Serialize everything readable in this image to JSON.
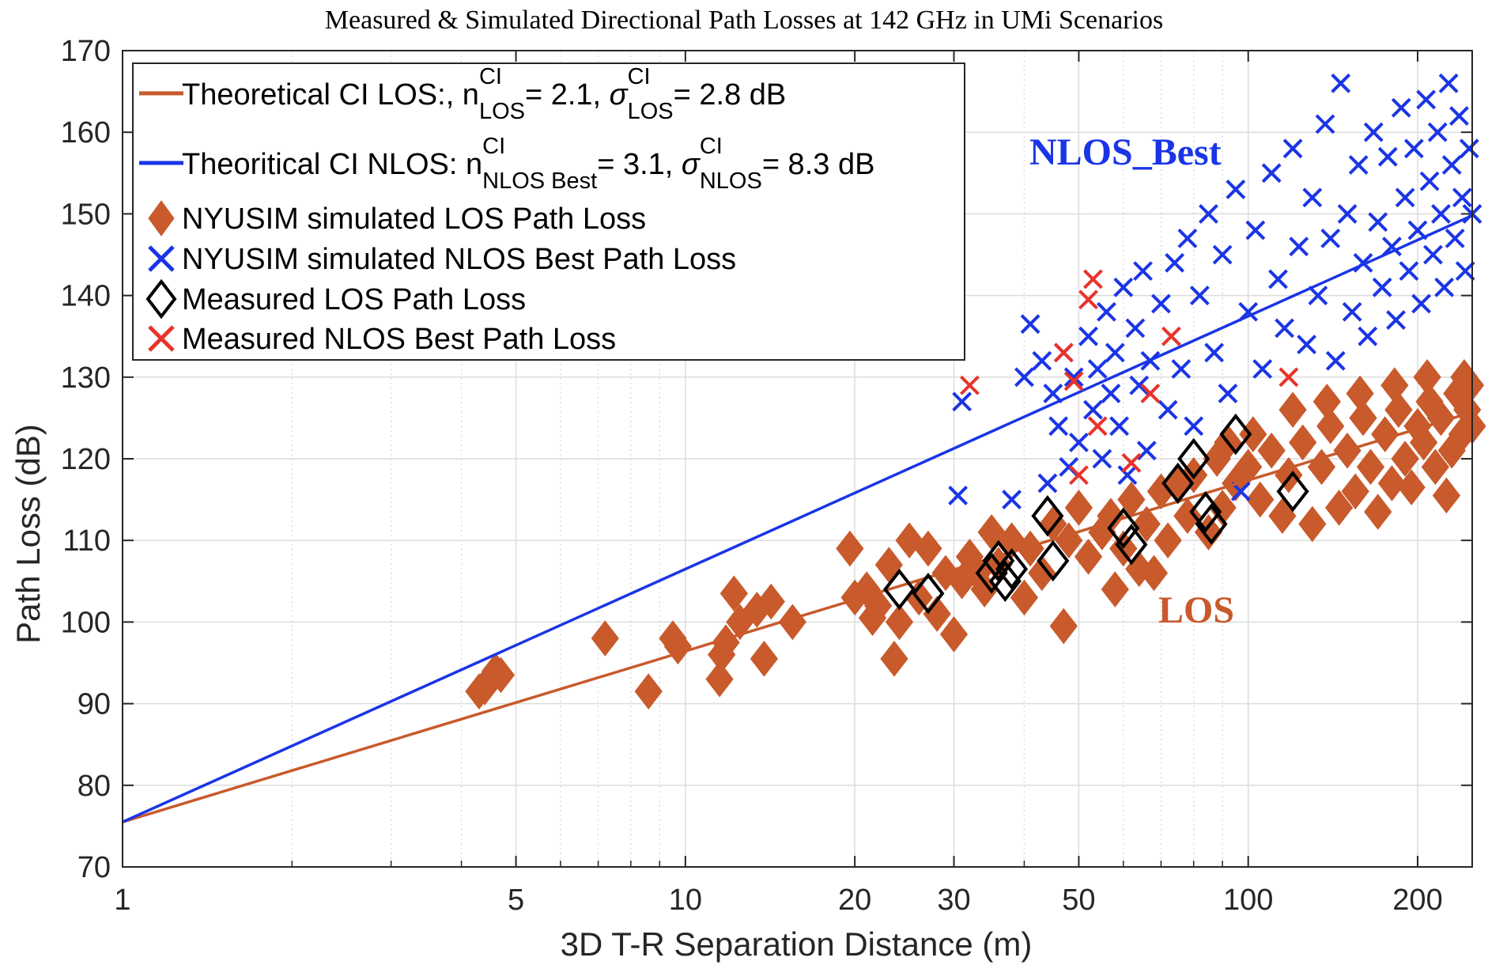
{
  "chart_data": {
    "type": "scatter",
    "title": "Measured & Simulated Directional Path Losses at 142 GHz in UMi Scenarios",
    "xlabel": "3D T-R Separation Distance (m)",
    "ylabel": "Path Loss (dB)",
    "xscale": "log",
    "xlim": [
      1,
      250
    ],
    "ylim": [
      70,
      170
    ],
    "grid": true,
    "legend_position": "top-left",
    "x_ticks": [
      1,
      5,
      10,
      20,
      30,
      50,
      100,
      200
    ],
    "x_tick_labels": [
      "1",
      "5",
      "10",
      "20",
      "30",
      "50",
      "100",
      "200"
    ],
    "x_minor_ticks": [
      2,
      3,
      4,
      6,
      7,
      8,
      9,
      40,
      60,
      70,
      80,
      90
    ],
    "y_ticks": [
      70,
      80,
      90,
      100,
      110,
      120,
      130,
      140,
      150,
      160,
      170
    ],
    "y_tick_labels": [
      "70",
      "80",
      "90",
      "100",
      "110",
      "120",
      "130",
      "140",
      "150",
      "160",
      "170"
    ],
    "annotations": [
      {
        "text": "NLOS_Best",
        "color": "#1a35e6",
        "x": 43,
        "y": 155
      },
      {
        "text": "LOS",
        "color": "#c85a2c",
        "x": 78,
        "y": 101
      }
    ],
    "legend": [
      {
        "key": "los_line",
        "prefix": "Theoretical CI LOS:, n",
        "sup1": "CI",
        "sub1": "LOS",
        "mid": "= 2.1, ",
        "sigma": "σ",
        "sup2": "CI",
        "sub2": "LOS",
        "suffix": "= 2.8 dB",
        "color": "#c85a2c"
      },
      {
        "key": "nlos_line",
        "prefix": "Theoritical CI NLOS: n",
        "sup1": "CI",
        "sub1": "NLOS Best",
        "mid": "= 3.1, ",
        "sigma": "σ",
        "sup2": "CI",
        "sub2": "NLOS",
        "suffix": "= 8.3 dB",
        "color": "#1a35e6"
      },
      {
        "key": "sim_los",
        "label": "NYUSIM simulated LOS Path Loss",
        "color": "#c85a2c",
        "marker": "filled-diamond"
      },
      {
        "key": "sim_nlos",
        "label": "NYUSIM simulated NLOS Best Path Loss",
        "color": "#1a35e6",
        "marker": "x"
      },
      {
        "key": "meas_los",
        "label": "Measured LOS Path Loss",
        "color": "#000000",
        "marker": "open-diamond"
      },
      {
        "key": "meas_nlos",
        "label": "Measured NLOS Best Path Loss",
        "color": "#e8332a",
        "marker": "x"
      }
    ],
    "series": [
      {
        "name": "Theoretical CI LOS",
        "kind": "line",
        "color": "#c85a2c",
        "points": [
          [
            1,
            75.5
          ],
          [
            250,
            125.7
          ]
        ]
      },
      {
        "name": "Theoritical CI NLOS",
        "kind": "line",
        "color": "#1a35e6",
        "points": [
          [
            1,
            75.5
          ],
          [
            250,
            149.8
          ]
        ]
      },
      {
        "name": "NYUSIM simulated LOS Path Loss",
        "kind": "scatter",
        "color": "#c85a2c",
        "marker": "filled-diamond",
        "points": [
          [
            4.4,
            92
          ],
          [
            4.5,
            93
          ],
          [
            4.6,
            94
          ],
          [
            4.7,
            93.5
          ],
          [
            4.3,
            91.5
          ],
          [
            7.2,
            98
          ],
          [
            8.6,
            91.5
          ],
          [
            9.5,
            98
          ],
          [
            9.7,
            97
          ],
          [
            11.5,
            93
          ],
          [
            11.6,
            96
          ],
          [
            11.8,
            97.5
          ],
          [
            12.2,
            103.5
          ],
          [
            12.5,
            100
          ],
          [
            13.4,
            101.5
          ],
          [
            13.8,
            95.5
          ],
          [
            14.2,
            102.5
          ],
          [
            15.5,
            100
          ],
          [
            19.6,
            109
          ],
          [
            20,
            103
          ],
          [
            21,
            104
          ],
          [
            21.5,
            100.5
          ],
          [
            22,
            102
          ],
          [
            23,
            107
          ],
          [
            23.5,
            95.5
          ],
          [
            24,
            100
          ],
          [
            25,
            110
          ],
          [
            26,
            103
          ],
          [
            27,
            109
          ],
          [
            28,
            101
          ],
          [
            29,
            106
          ],
          [
            30,
            98.5
          ],
          [
            31,
            105
          ],
          [
            32,
            108
          ],
          [
            33,
            106
          ],
          [
            34,
            104
          ],
          [
            35,
            111
          ],
          [
            36,
            107
          ],
          [
            38,
            110
          ],
          [
            40,
            103
          ],
          [
            41,
            109
          ],
          [
            43,
            106
          ],
          [
            45,
            112
          ],
          [
            47,
            99.5
          ],
          [
            48,
            110
          ],
          [
            50,
            114
          ],
          [
            52,
            108
          ],
          [
            55,
            111
          ],
          [
            57,
            113
          ],
          [
            60,
            109
          ],
          [
            62,
            115
          ],
          [
            64,
            106.5
          ],
          [
            66,
            112
          ],
          [
            70,
            116
          ],
          [
            72,
            110
          ],
          [
            75,
            117
          ],
          [
            78,
            113
          ],
          [
            80,
            118
          ],
          [
            85,
            111
          ],
          [
            88,
            120
          ],
          [
            90,
            114
          ],
          [
            95,
            117
          ],
          [
            100,
            119
          ],
          [
            105,
            115
          ],
          [
            110,
            121
          ],
          [
            115,
            113
          ],
          [
            118,
            118
          ],
          [
            125,
            122
          ],
          [
            130,
            112
          ],
          [
            135,
            119
          ],
          [
            140,
            124
          ],
          [
            145,
            114
          ],
          [
            150,
            121
          ],
          [
            155,
            116
          ],
          [
            160,
            125
          ],
          [
            165,
            119
          ],
          [
            170,
            113.5
          ],
          [
            175,
            123
          ],
          [
            180,
            117
          ],
          [
            185,
            126
          ],
          [
            190,
            120
          ],
          [
            195,
            116.5
          ],
          [
            200,
            124
          ],
          [
            205,
            122
          ],
          [
            210,
            127
          ],
          [
            215,
            119
          ],
          [
            220,
            125
          ],
          [
            225,
            115.5
          ],
          [
            230,
            121
          ],
          [
            235,
            128
          ],
          [
            240,
            123
          ],
          [
            245,
            126
          ],
          [
            248,
            129
          ],
          [
            250,
            124
          ],
          [
            58,
            104
          ],
          [
            68,
            106
          ],
          [
            92,
            122
          ],
          [
            102,
            123
          ],
          [
            120,
            126
          ],
          [
            138,
            127
          ],
          [
            158,
            128
          ],
          [
            182,
            129
          ],
          [
            208,
            130
          ],
          [
            242,
            130
          ]
        ]
      },
      {
        "name": "NYUSIM simulated NLOS Best Path Loss",
        "kind": "scatter",
        "color": "#1a35e6",
        "marker": "x",
        "points": [
          [
            31,
            127
          ],
          [
            30.5,
            115.5
          ],
          [
            38,
            115
          ],
          [
            40,
            130
          ],
          [
            41,
            136.5
          ],
          [
            43,
            132
          ],
          [
            44,
            117
          ],
          [
            45,
            128
          ],
          [
            46,
            124
          ],
          [
            47,
            133
          ],
          [
            48,
            119
          ],
          [
            49,
            130
          ],
          [
            50,
            122
          ],
          [
            52,
            135
          ],
          [
            53,
            126
          ],
          [
            54,
            131
          ],
          [
            55,
            120
          ],
          [
            56,
            138
          ],
          [
            57,
            128
          ],
          [
            58,
            133
          ],
          [
            59,
            124
          ],
          [
            60,
            141
          ],
          [
            61,
            118
          ],
          [
            63,
            136
          ],
          [
            64,
            129
          ],
          [
            65,
            143
          ],
          [
            66,
            121
          ],
          [
            67,
            132
          ],
          [
            70,
            139
          ],
          [
            72,
            126
          ],
          [
            74,
            144
          ],
          [
            76,
            131
          ],
          [
            78,
            147
          ],
          [
            80,
            124
          ],
          [
            82,
            140
          ],
          [
            85,
            150
          ],
          [
            87,
            133
          ],
          [
            90,
            145
          ],
          [
            92,
            128
          ],
          [
            95,
            153
          ],
          [
            97,
            116
          ],
          [
            100,
            138
          ],
          [
            103,
            148
          ],
          [
            106,
            131
          ],
          [
            110,
            155
          ],
          [
            113,
            142
          ],
          [
            116,
            136
          ],
          [
            120,
            158
          ],
          [
            123,
            146
          ],
          [
            127,
            134
          ],
          [
            130,
            152
          ],
          [
            133,
            140
          ],
          [
            137,
            161
          ],
          [
            140,
            147
          ],
          [
            143,
            132
          ],
          [
            146,
            166
          ],
          [
            150,
            150
          ],
          [
            153,
            138
          ],
          [
            157,
            156
          ],
          [
            160,
            144
          ],
          [
            163,
            135
          ],
          [
            167,
            160
          ],
          [
            170,
            149
          ],
          [
            173,
            141
          ],
          [
            177,
            157
          ],
          [
            180,
            146
          ],
          [
            183,
            137
          ],
          [
            187,
            163
          ],
          [
            190,
            152
          ],
          [
            193,
            143
          ],
          [
            197,
            158
          ],
          [
            200,
            148
          ],
          [
            203,
            139
          ],
          [
            207,
            164
          ],
          [
            210,
            154
          ],
          [
            213,
            145
          ],
          [
            217,
            160
          ],
          [
            220,
            150
          ],
          [
            223,
            141
          ],
          [
            227,
            166
          ],
          [
            230,
            156
          ],
          [
            233,
            147
          ],
          [
            237,
            162
          ],
          [
            240,
            152
          ],
          [
            243,
            143
          ],
          [
            247,
            158
          ],
          [
            250,
            150
          ]
        ]
      },
      {
        "name": "Measured LOS Path Loss",
        "kind": "scatter",
        "color": "#000000",
        "marker": "open-diamond",
        "points": [
          [
            24,
            104
          ],
          [
            27,
            103.5
          ],
          [
            35,
            106
          ],
          [
            36,
            107.5
          ],
          [
            37,
            105
          ],
          [
            38,
            106.5
          ],
          [
            44,
            113
          ],
          [
            45,
            107.5
          ],
          [
            60,
            111.5
          ],
          [
            62,
            109.5
          ],
          [
            75,
            117
          ],
          [
            80,
            120
          ],
          [
            84,
            113.5
          ],
          [
            86,
            112
          ],
          [
            95,
            123
          ],
          [
            120,
            116
          ]
        ]
      },
      {
        "name": "Measured NLOS Best Path Loss",
        "kind": "scatter",
        "color": "#e8332a",
        "marker": "x",
        "points": [
          [
            32,
            129
          ],
          [
            47,
            133
          ],
          [
            49,
            129.5
          ],
          [
            50,
            118
          ],
          [
            52,
            139.5
          ],
          [
            53,
            142
          ],
          [
            54,
            124
          ],
          [
            62,
            119.5
          ],
          [
            67,
            128
          ],
          [
            73,
            135
          ],
          [
            118,
            130
          ]
        ]
      }
    ]
  }
}
